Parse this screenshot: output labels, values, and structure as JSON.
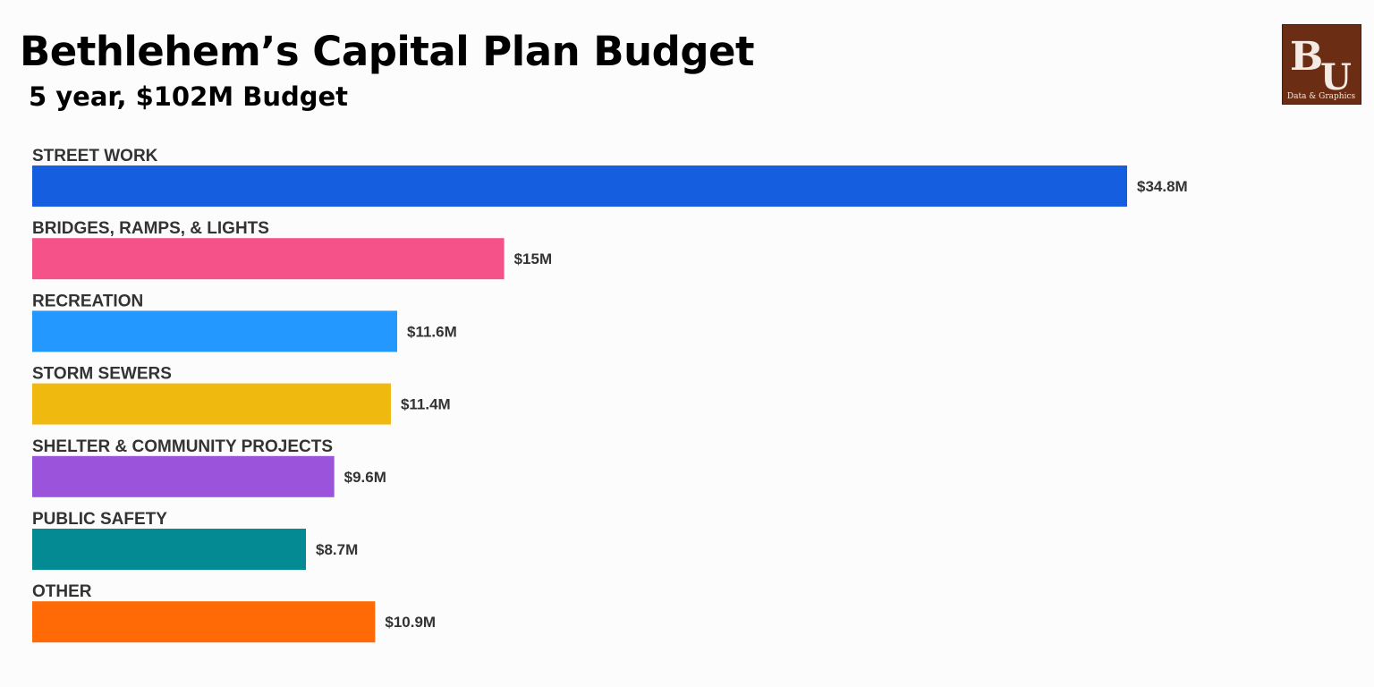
{
  "header": {
    "title": "Bethlehem’s Capital Plan Budget",
    "subtitle": "5 year, $102M Budget"
  },
  "logo": {
    "text": "Data & Graphics",
    "monogram": "BU",
    "background": "#6b2e14"
  },
  "chart_data": {
    "type": "bar",
    "orientation": "horizontal",
    "title": "Bethlehem’s Capital Plan Budget",
    "subtitle": "5 year, $102M Budget",
    "xlabel": "",
    "ylabel": "",
    "unit": "$M",
    "grid": false,
    "legend": "none",
    "xlim": [
      0,
      34.8
    ],
    "categories": [
      "STREET WORK",
      "BRIDGES, RAMPS, & LIGHTS",
      "RECREATION",
      "STORM SEWERS",
      "SHELTER & COMMUNITY PROJECTS",
      "PUBLIC SAFETY",
      "OTHER"
    ],
    "values": [
      34.8,
      15,
      11.6,
      11.4,
      9.6,
      8.7,
      10.9
    ],
    "value_labels": [
      "$34.8M",
      "$15M",
      "$11.6M",
      "$11.4M",
      "$9.6M",
      "$8.7M",
      "$10.9M"
    ],
    "colors": [
      "#155ee0",
      "#f5528a",
      "#2399ff",
      "#f0b910",
      "#9b53db",
      "#048a92",
      "#ff6a06"
    ]
  }
}
